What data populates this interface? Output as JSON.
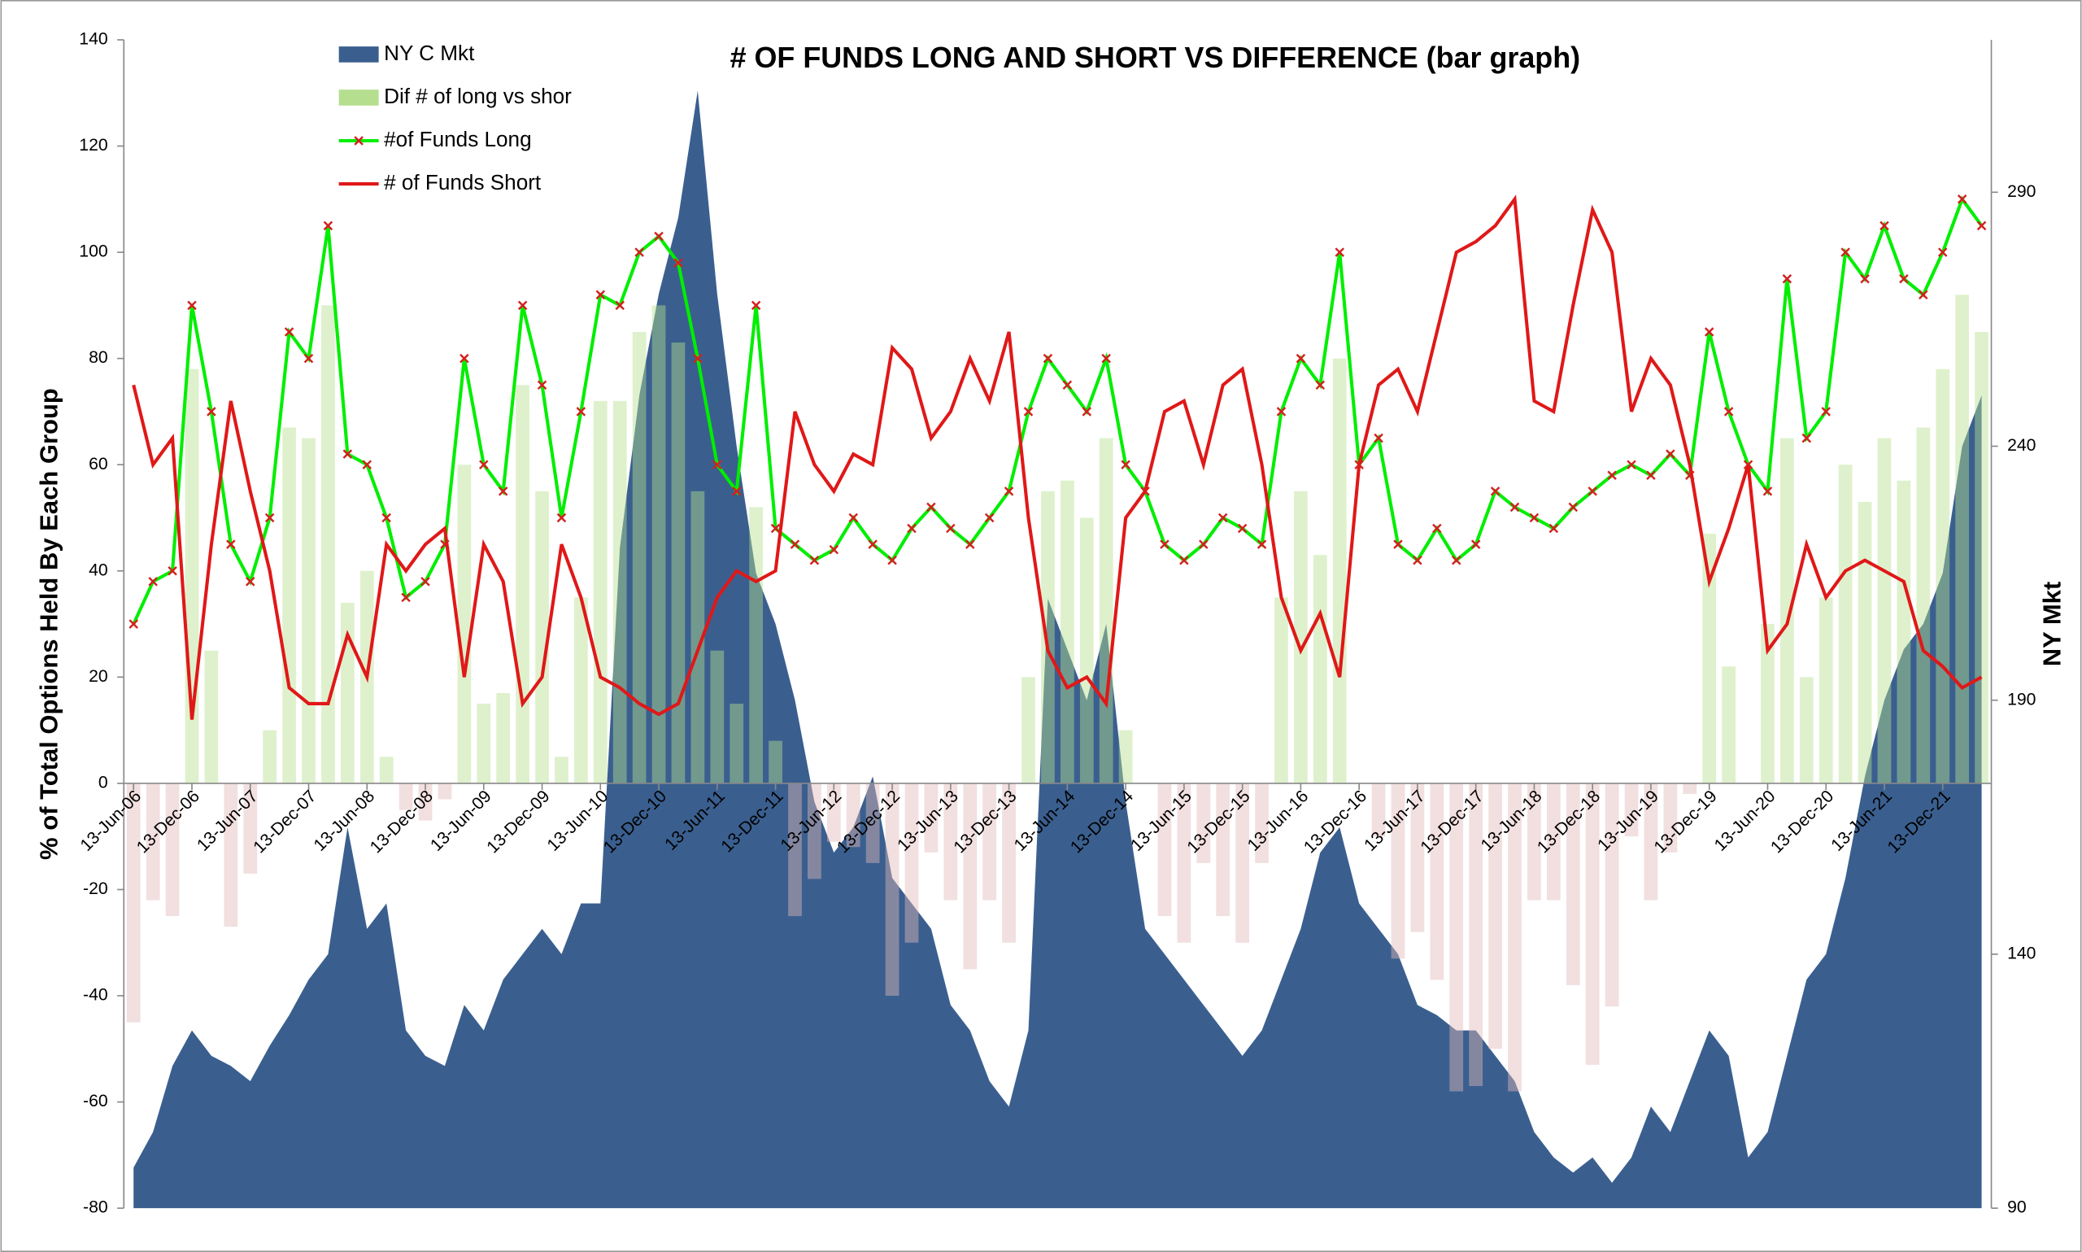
{
  "chart_data": {
    "type": "combo",
    "title": "# OF FUNDS LONG AND SHORT VS DIFFERENCE (bar graph)",
    "y_label": "% of Total Options Held By Each Group",
    "y2_label": "NY Mkt",
    "categories": [
      "13-Jun-06",
      null,
      null,
      "13-Dec-06",
      null,
      null,
      "13-Jun-07",
      null,
      null,
      "13-Dec-07",
      null,
      null,
      "13-Jun-08",
      null,
      null,
      "13-Dec-08",
      null,
      null,
      "13-Jun-09",
      null,
      null,
      "13-Dec-09",
      null,
      null,
      "13-Jun-10",
      null,
      null,
      "13-Dec-10",
      null,
      null,
      "13-Jun-11",
      null,
      null,
      "13-Dec-11",
      null,
      null,
      "13-Jun-12",
      null,
      null,
      "13-Dec-12",
      null,
      null,
      "13-Jun-13",
      null,
      null,
      "13-Dec-13",
      null,
      null,
      "13-Jun-14",
      null,
      null,
      "13-Dec-14",
      null,
      null,
      "13-Jun-15",
      null,
      null,
      "13-Dec-15",
      null,
      null,
      "13-Jun-16",
      null,
      null,
      "13-Dec-16",
      null,
      null,
      "13-Jun-17",
      null,
      null,
      "13-Dec-17",
      null,
      null,
      "13-Jun-18",
      null,
      null,
      "13-Dec-18",
      null,
      null,
      "13-Jun-19",
      null,
      null,
      "13-Dec-19",
      null,
      null,
      "13-Jun-20",
      null,
      null,
      "13-Dec-20",
      null,
      null,
      "13-Jun-21",
      null,
      null,
      "13-Dec-21",
      null,
      null
    ],
    "series": [
      {
        "name": "NY C Mkt",
        "type": "area",
        "axis": "y2",
        "color": "#3a5f8f",
        "values": [
          98,
          105,
          118,
          125,
          120,
          118,
          115,
          122,
          128,
          135,
          140,
          165,
          145,
          150,
          125,
          120,
          118,
          130,
          125,
          135,
          140,
          145,
          140,
          150,
          150,
          220,
          250,
          270,
          285,
          310,
          270,
          240,
          215,
          205,
          190,
          170,
          160,
          165,
          175,
          155,
          150,
          145,
          130,
          125,
          115,
          110,
          125,
          210,
          200,
          190,
          205,
          170,
          145,
          140,
          135,
          130,
          125,
          120,
          125,
          135,
          145,
          160,
          165,
          150,
          145,
          140,
          130,
          128,
          125,
          125,
          120,
          115,
          105,
          100,
          97,
          100,
          95,
          100,
          110,
          105,
          115,
          125,
          120,
          100,
          105,
          120,
          135,
          140,
          155,
          175,
          190,
          200,
          205,
          215,
          240,
          250
        ]
      },
      {
        "name": "Dif # of long vs shor",
        "type": "bar",
        "color": "#b5df8e",
        "negative_color": "#e3b8b8",
        "values": [
          -45,
          -22,
          -25,
          78,
          25,
          -27,
          -17,
          10,
          67,
          65,
          90,
          34,
          40,
          5,
          -5,
          -7,
          -3,
          60,
          15,
          17,
          75,
          55,
          5,
          35,
          72,
          72,
          85,
          90,
          83,
          55,
          25,
          15,
          52,
          8,
          -25,
          -18,
          -11,
          -12,
          -15,
          -40,
          -30,
          -13,
          -22,
          -35,
          -22,
          -30,
          20,
          55,
          57,
          50,
          65,
          10,
          0,
          -25,
          -30,
          -15,
          -25,
          -30,
          -15,
          35,
          55,
          43,
          80,
          0,
          -10,
          -33,
          -28,
          -37,
          -58,
          -57,
          -50,
          -58,
          -22,
          -22,
          -38,
          -53,
          -42,
          -10,
          -22,
          -13,
          -2,
          47,
          22,
          0,
          30,
          65,
          20,
          35,
          60,
          53,
          65,
          57,
          67,
          78,
          92,
          85
        ]
      },
      {
        "name": "#of Funds Long",
        "type": "line",
        "color": "#00ee00",
        "marker_color": "#d42020",
        "values": [
          30,
          38,
          40,
          90,
          70,
          45,
          38,
          50,
          85,
          80,
          105,
          62,
          60,
          50,
          35,
          38,
          45,
          80,
          60,
          55,
          90,
          75,
          50,
          70,
          92,
          90,
          100,
          103,
          98,
          80,
          60,
          55,
          90,
          48,
          45,
          42,
          44,
          50,
          45,
          42,
          48,
          52,
          48,
          45,
          50,
          55,
          70,
          80,
          75,
          70,
          80,
          60,
          55,
          45,
          42,
          45,
          50,
          48,
          45,
          70,
          80,
          75,
          100,
          60,
          65,
          45,
          42,
          48,
          42,
          45,
          55,
          52,
          50,
          48,
          52,
          55,
          58,
          60,
          58,
          62,
          58,
          85,
          70,
          60,
          55,
          95,
          65,
          70,
          100,
          95,
          105,
          95,
          92,
          100,
          110,
          105
        ]
      },
      {
        "name": "# of Funds Short",
        "type": "line",
        "color": "#e01818",
        "values": [
          75,
          60,
          65,
          12,
          45,
          72,
          55,
          40,
          18,
          15,
          15,
          28,
          20,
          45,
          40,
          45,
          48,
          20,
          45,
          38,
          15,
          20,
          45,
          35,
          20,
          18,
          15,
          13,
          15,
          25,
          35,
          40,
          38,
          40,
          70,
          60,
          55,
          62,
          60,
          82,
          78,
          65,
          70,
          80,
          72,
          85,
          50,
          25,
          18,
          20,
          15,
          50,
          55,
          70,
          72,
          60,
          75,
          78,
          60,
          35,
          25,
          32,
          20,
          60,
          75,
          78,
          70,
          85,
          100,
          102,
          105,
          110,
          72,
          70,
          90,
          108,
          100,
          70,
          80,
          75,
          60,
          38,
          48,
          60,
          25,
          30,
          45,
          35,
          40,
          42,
          40,
          38,
          25,
          22,
          18,
          20
        ]
      }
    ],
    "ylim": [
      -80,
      140
    ],
    "yticks": [
      -80,
      -60,
      -40,
      -20,
      0,
      20,
      40,
      60,
      80,
      100,
      120,
      140
    ],
    "y2lim": [
      90,
      320
    ],
    "y2ticks": [
      90,
      140,
      190,
      240,
      290
    ],
    "legend": "top-left"
  }
}
